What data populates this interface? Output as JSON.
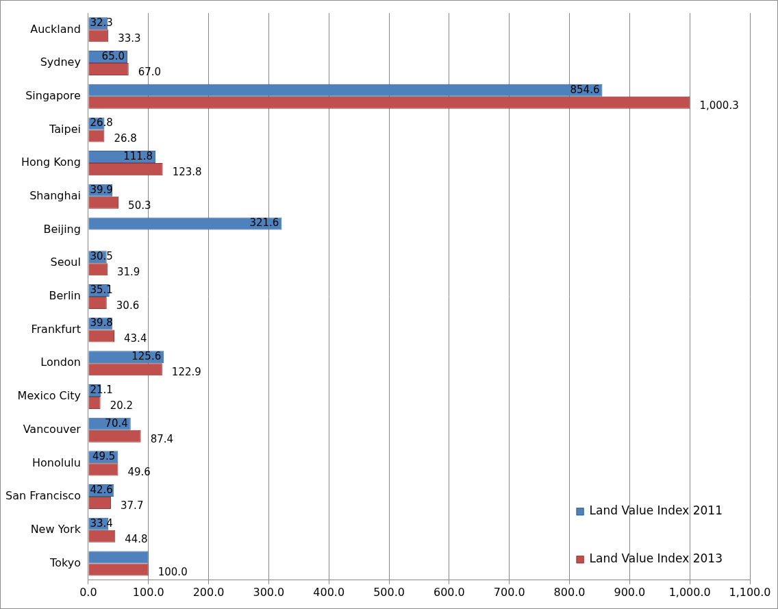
{
  "chart_data": {
    "type": "bar",
    "orientation": "horizontal",
    "categories": [
      "Auckland",
      "Sydney",
      "Singapore",
      "Taipei",
      "Hong Kong",
      "Shanghai",
      "Beijing",
      "Seoul",
      "Berlin",
      "Frankfurt",
      "London",
      "Mexico City",
      "Vancouver",
      "Honolulu",
      "San Francisco",
      "New York",
      "Tokyo"
    ],
    "series": [
      {
        "name": "Land Value Index 2011",
        "color": "#4F81BD",
        "values": [
          32.3,
          65.0,
          854.6,
          26.8,
          111.8,
          39.9,
          321.6,
          30.5,
          35.1,
          39.8,
          125.6,
          21.1,
          70.4,
          49.5,
          42.6,
          33.4,
          100.0
        ],
        "value_labels": [
          "32.3",
          "65.0",
          "854.6",
          "26.8",
          "111.8",
          "39.9",
          "321.6",
          "30.5",
          "35.1",
          "39.8",
          "125.6",
          "21.1",
          "70.4",
          "49.5",
          "42.6",
          "33.4",
          null
        ]
      },
      {
        "name": "Land Value Index 2013",
        "color": "#C0504D",
        "values": [
          33.3,
          67.0,
          1000.3,
          26.8,
          123.8,
          50.3,
          null,
          31.9,
          30.6,
          43.4,
          122.9,
          20.2,
          87.4,
          49.6,
          37.7,
          44.8,
          100.0
        ],
        "value_labels": [
          "33.3",
          "67.0",
          "1,000.3",
          "26.8",
          "123.8",
          "50.3",
          null,
          "31.9",
          "30.6",
          "43.4",
          "122.9",
          "20.2",
          "87.4",
          "49.6",
          "37.7",
          "44.8",
          "100.0"
        ]
      }
    ],
    "xlim": [
      0,
      1100
    ],
    "xticks": [
      {
        "value": 0,
        "label": "0.0"
      },
      {
        "value": 100,
        "label": "100.0"
      },
      {
        "value": 200,
        "label": "200.0"
      },
      {
        "value": 300,
        "label": "300.0"
      },
      {
        "value": 400,
        "label": "400.0"
      },
      {
        "value": 500,
        "label": "500.0"
      },
      {
        "value": 600,
        "label": "600.0"
      },
      {
        "value": 700,
        "label": "700.0"
      },
      {
        "value": 800,
        "label": "800.0"
      },
      {
        "value": 900,
        "label": "900.0"
      },
      {
        "value": 1000,
        "label": "1,000.0"
      },
      {
        "value": 1100,
        "label": "1,100.0"
      }
    ],
    "grid": true,
    "legend": "lower right",
    "data_labels": true
  }
}
